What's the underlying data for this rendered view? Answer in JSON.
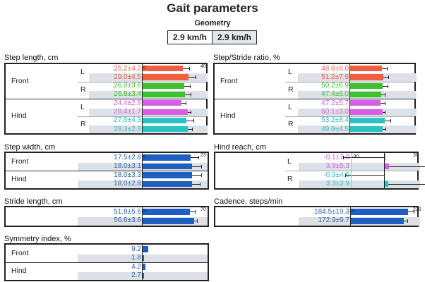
{
  "header": {
    "title": "Gait parameters",
    "section": "Geometry",
    "speeds": [
      "2.9 km/h",
      "2.9 km/h"
    ]
  },
  "colors": {
    "front_l": "#ee6040",
    "front_r": "#3cc22c",
    "hind_l": "#d660e4",
    "hind_r": "#2cc2c4",
    "single": "#1f5fc2"
  },
  "chart_data": [
    {
      "id": "step_length",
      "type": "bar",
      "title": "Step length, cm",
      "xlim": [
        0,
        40
      ],
      "tick_labels": [
        "0",
        "40"
      ],
      "groups": [
        {
          "label": "Front",
          "subs": [
            {
              "label": "L",
              "color": "front_l",
              "rows": [
                [
                  25.2,
                  4.2
                ],
                [
                  29.0,
                  4.5
                ]
              ]
            },
            {
              "label": "R",
              "color": "front_r",
              "rows": [
                [
                  26.0,
                  3.6
                ],
                [
                  26.8,
                  3.4
                ]
              ]
            }
          ]
        },
        {
          "label": "Hind",
          "subs": [
            {
              "label": "L",
              "color": "hind_l",
              "rows": [
                [
                  24.4,
                  2.9
                ],
                [
                  28.4,
                  1.7
                ]
              ]
            },
            {
              "label": "R",
              "color": "hind_r",
              "rows": [
                [
                  27.5,
                  4.3
                ],
                [
                  28.3,
                  2.6
                ]
              ]
            }
          ]
        }
      ]
    },
    {
      "id": "step_stride_ratio",
      "type": "bar",
      "title": "Step/Stride ratio, %",
      "xlim": [
        0,
        100
      ],
      "tick_labels": [],
      "groups": [
        {
          "label": "Front",
          "subs": [
            {
              "label": "L",
              "color": "front_l",
              "rows": [
                [
                  48.6,
                  8.0
                ],
                [
                  51.2,
                  7.9
                ]
              ]
            },
            {
              "label": "R",
              "color": "front_r",
              "rows": [
                [
                  50.2,
                  6.9
                ],
                [
                  47.4,
                  6.0
                ]
              ]
            }
          ]
        },
        {
          "label": "Hind",
          "subs": [
            {
              "label": "L",
              "color": "hind_l",
              "rows": [
                [
                  47.2,
                  5.7
                ],
                [
                  50.1,
                  3.0
                ]
              ]
            },
            {
              "label": "R",
              "color": "hind_r",
              "rows": [
                [
                  53.2,
                  8.4
                ],
                [
                  49.9,
                  4.5
                ]
              ]
            }
          ]
        }
      ]
    },
    {
      "id": "step_width",
      "type": "bar",
      "title": "Step width, cm",
      "xlim": [
        0,
        23
      ],
      "tick_labels": [
        "0",
        "23"
      ],
      "groups": [
        {
          "label": "Front",
          "subs": [
            {
              "label": "",
              "color": "single",
              "rows": [
                [
                  17.5,
                  2.8
                ],
                [
                  18.0,
                  3.1
                ]
              ]
            }
          ]
        },
        {
          "label": "Hind",
          "subs": [
            {
              "label": "",
              "color": "single",
              "rows": [
                [
                  18.0,
                  3.3
                ],
                [
                  18.0,
                  2.8
                ]
              ]
            }
          ]
        }
      ]
    },
    {
      "id": "hind_reach",
      "type": "bar",
      "title": "Hind reach, cm",
      "xlim": [
        -30,
        30
      ],
      "tick_labels": [
        "-30",
        "30"
      ],
      "groups": [
        {
          "label": "",
          "subs": [
            {
              "label": "L",
              "color": "hind_l",
              "rows": [
                [
                  -0.1,
                  7.0
                ],
                [
                  3.9,
                  5.3
                ]
              ]
            },
            {
              "label": "R",
              "color": "hind_r",
              "rows": [
                [
                  -0.9,
                  4.0
                ],
                [
                  3.3,
                  3.9
                ]
              ]
            }
          ]
        }
      ]
    },
    {
      "id": "stride_length",
      "type": "bar",
      "title": "Stride length, cm",
      "xlim": [
        0,
        70
      ],
      "tick_labels": [
        "0",
        "70"
      ],
      "groups": [
        {
          "label": "",
          "subs": [
            {
              "label": "",
              "color": "single",
              "rows": [
                [
                  51.8,
                  5.6
                ],
                [
                  56.6,
                  3.6
                ]
              ]
            }
          ]
        }
      ]
    },
    {
      "id": "cadence",
      "type": "bar",
      "title": "Cadence, steps/min",
      "xlim": [
        0,
        220
      ],
      "tick_labels": [
        "0",
        "220"
      ],
      "groups": [
        {
          "label": "",
          "subs": [
            {
              "label": "",
              "color": "single",
              "rows": [
                [
                  184.5,
                  19.3
                ],
                [
                  172.9,
                  9.7
                ]
              ]
            }
          ]
        }
      ]
    },
    {
      "id": "symmetry_index",
      "type": "bar",
      "title": "Symmetry index, %",
      "xlim": [
        0,
        100
      ],
      "tick_labels": [],
      "no_sd": true,
      "groups": [
        {
          "label": "Front",
          "subs": [
            {
              "label": "",
              "color": "single",
              "rows": [
                [
                  9.2
                ],
                [
                  1.8
                ]
              ]
            }
          ]
        },
        {
          "label": "Hind",
          "subs": [
            {
              "label": "",
              "color": "single",
              "rows": [
                [
                  4.2
                ],
                [
                  2.7
                ]
              ]
            }
          ]
        }
      ]
    }
  ]
}
